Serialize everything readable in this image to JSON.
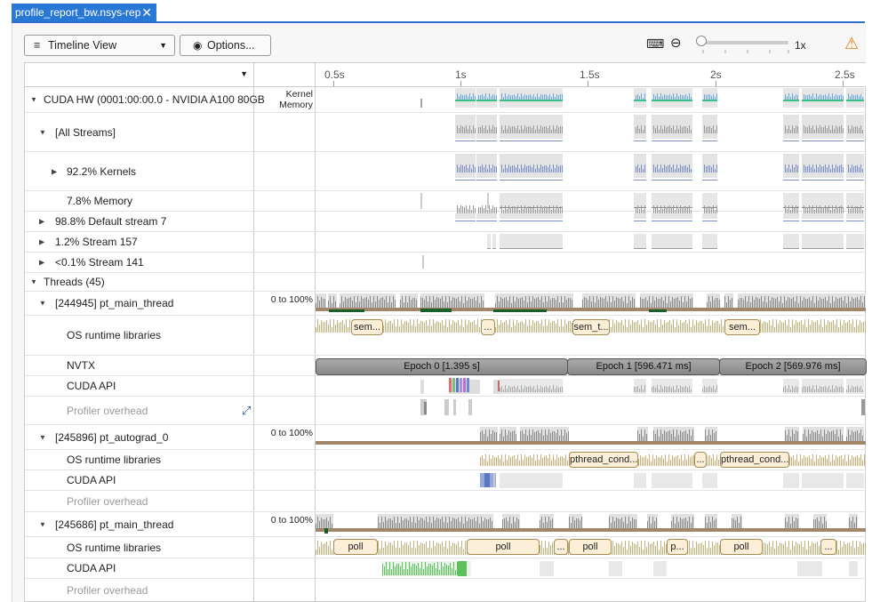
{
  "tab": {
    "title": "profile_report_bw.nsys-rep",
    "close": "✕"
  },
  "toolbar": {
    "view_label": "Timeline View",
    "options_label": "Options...",
    "zoom_level": "1x"
  },
  "ruler": {
    "ticks": [
      "0.5s",
      "1s",
      "1.5s",
      "2s",
      "2.5s"
    ]
  },
  "rows": {
    "cuda_hw": {
      "label": "CUDA HW (0001:00:00.0 - NVIDIA A100 80GB",
      "scale": "Kernel Memory"
    },
    "all_streams": {
      "label": "[All Streams]"
    },
    "kernels": {
      "label": "92.2% Kernels"
    },
    "memory": {
      "label": "7.8% Memory"
    },
    "stream7": {
      "label": "98.8% Default stream 7"
    },
    "stream157": {
      "label": "1.2% Stream 157"
    },
    "stream141": {
      "label": "<0.1% Stream 141"
    },
    "threads": {
      "label": "Threads (45)"
    },
    "t1": {
      "label": "[244945] pt_main_thread",
      "scale": "0 to 100%"
    },
    "t1_os": {
      "label": "OS runtime libraries"
    },
    "t1_nvtx": {
      "label": "NVTX"
    },
    "t1_cuda": {
      "label": "CUDA API"
    },
    "t1_prof": {
      "label": "Profiler overhead"
    },
    "t2": {
      "label": "[245896] pt_autograd_0",
      "scale": "0 to 100%"
    },
    "t2_os": {
      "label": "OS runtime libraries"
    },
    "t2_cuda": {
      "label": "CUDA API"
    },
    "t2_prof": {
      "label": "Profiler overhead"
    },
    "t3": {
      "label": "[245686] pt_main_thread",
      "scale": "0 to 100%"
    },
    "t3_os": {
      "label": "OS runtime libraries"
    },
    "t3_cuda": {
      "label": "CUDA API"
    },
    "t3_prof": {
      "label": "Profiler overhead"
    }
  },
  "nvtx_epochs": [
    "Epoch 0 [1.395 s]",
    "Epoch 1 [596.471 ms]",
    "Epoch 2 [569.976 ms]"
  ],
  "os_pills_t1": [
    "sem...",
    "...",
    "sem_t...",
    "sem..."
  ],
  "os_pills_t2": [
    "pthread_cond...",
    "...",
    "pthread_cond..."
  ],
  "os_pills_t3": [
    "poll",
    "poll",
    "...",
    "poll",
    "p...",
    "poll",
    "..."
  ],
  "colors": {
    "accent": "#2a78d6",
    "warning": "#e07a10",
    "kernel": "#6aa8e0",
    "cuda_api": "#5cc05c",
    "os": "#d8c49a"
  }
}
